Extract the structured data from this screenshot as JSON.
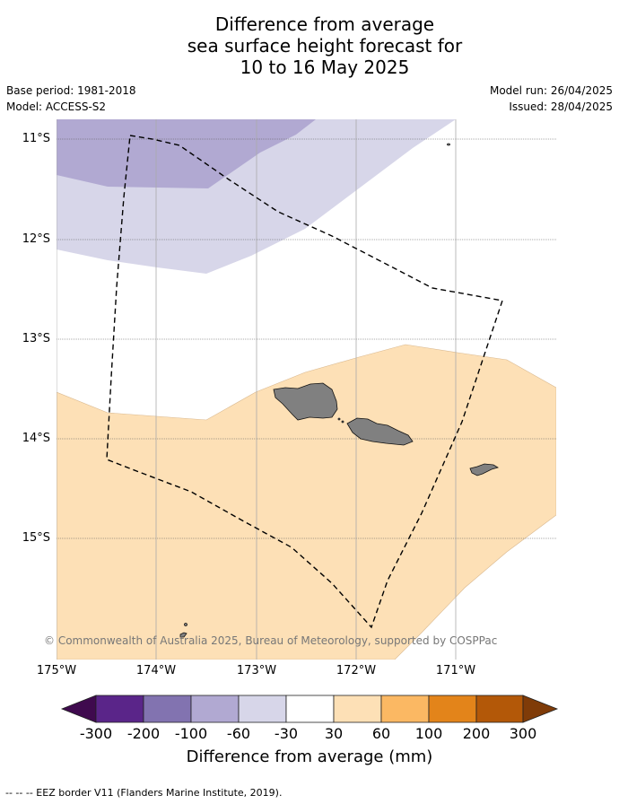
{
  "header": {
    "title_lines": [
      "Difference from average",
      "sea surface height forecast for",
      "10 to 16 May 2025"
    ],
    "base_period": "Base period: 1981-2018",
    "model": "Model: ACCESS-S2",
    "model_run": "Model run: 26/04/2025",
    "issued": "Issued: 28/04/2025"
  },
  "map": {
    "lat_labels": [
      "11°S",
      "12°S",
      "13°S",
      "14°S",
      "15°S"
    ],
    "lon_labels": [
      "175°W",
      "174°W",
      "173°W",
      "172°W",
      "171°W"
    ],
    "credit": "© Commonwealth of Australia 2025, Bureau of Meteorology, supported by COSPPac",
    "extent": {
      "lon_min": -175,
      "lon_max": -170,
      "lat_min": -16.2,
      "lat_max": -10.8
    }
  },
  "colorbar": {
    "ticks": [
      "-300",
      "-200",
      "-100",
      "-60",
      "-30",
      "30",
      "60",
      "100",
      "200",
      "300"
    ],
    "colors": [
      "#3f0a4e",
      "#5a2589",
      "#8273b0",
      "#b1a9d2",
      "#d7d6e9",
      "#ffffff",
      "#fde0b6",
      "#fbb863",
      "#e3841a",
      "#b35808",
      "#7f3b08"
    ],
    "title": "Difference from average (mm)"
  },
  "legend": {
    "eez_note": "-- -- -- EEZ border V11 (Flanders Marine Institute, 2019)."
  }
}
